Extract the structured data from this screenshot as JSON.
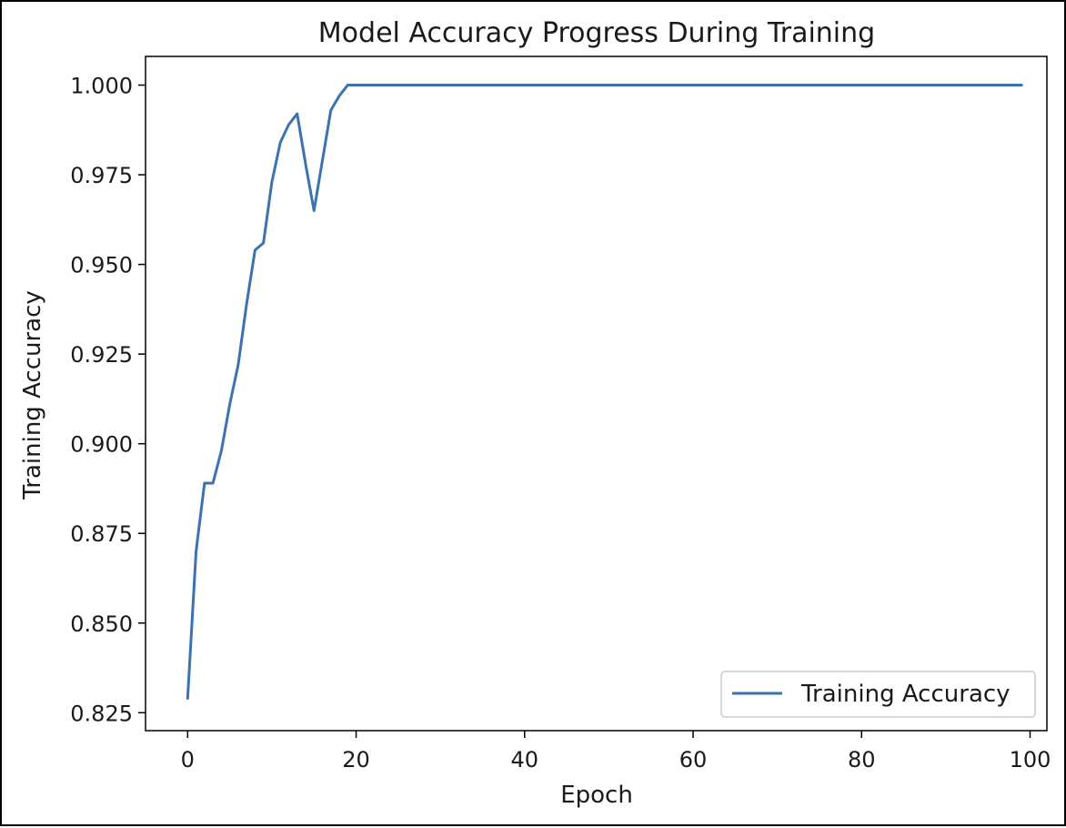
{
  "chart_data": {
    "type": "line",
    "title": "Model Accuracy Progress During Training",
    "xlabel": "Epoch",
    "ylabel": "Training Accuracy",
    "xlim": [
      -5,
      102
    ],
    "ylim": [
      0.82,
      1.008
    ],
    "xticks": [
      0,
      20,
      40,
      60,
      80,
      100
    ],
    "xtick_labels": [
      "0",
      "20",
      "40",
      "60",
      "80",
      "100"
    ],
    "yticks": [
      0.825,
      0.85,
      0.875,
      0.9,
      0.925,
      0.95,
      0.975,
      1.0
    ],
    "ytick_labels": [
      "0.825",
      "0.850",
      "0.875",
      "0.900",
      "0.925",
      "0.950",
      "0.975",
      "1.000"
    ],
    "grid": false,
    "legend_position": "lower-right",
    "series": [
      {
        "name": "Training Accuracy",
        "color": "#3b73b0",
        "x": [
          0,
          1,
          2,
          3,
          4,
          5,
          6,
          7,
          8,
          9,
          10,
          11,
          12,
          13,
          14,
          15,
          16,
          17,
          18,
          19,
          20,
          21,
          22,
          23,
          24,
          25,
          26,
          27,
          28,
          29,
          30,
          31,
          32,
          33,
          34,
          35,
          36,
          37,
          38,
          39,
          40,
          41,
          42,
          43,
          44,
          45,
          46,
          47,
          48,
          49,
          50,
          51,
          52,
          53,
          54,
          55,
          56,
          57,
          58,
          59,
          60,
          61,
          62,
          63,
          64,
          65,
          66,
          67,
          68,
          69,
          70,
          71,
          72,
          73,
          74,
          75,
          76,
          77,
          78,
          79,
          80,
          81,
          82,
          83,
          84,
          85,
          86,
          87,
          88,
          89,
          90,
          91,
          92,
          93,
          94,
          95,
          96,
          97,
          98,
          99
        ],
        "values": [
          0.829,
          0.87,
          0.889,
          0.889,
          0.898,
          0.911,
          0.922,
          0.939,
          0.954,
          0.956,
          0.973,
          0.984,
          0.989,
          0.992,
          0.978,
          0.965,
          0.979,
          0.993,
          0.997,
          1.0,
          1.0,
          1.0,
          1.0,
          1.0,
          1.0,
          1.0,
          1.0,
          1.0,
          1.0,
          1.0,
          1.0,
          1.0,
          1.0,
          1.0,
          1.0,
          1.0,
          1.0,
          1.0,
          1.0,
          1.0,
          1.0,
          1.0,
          1.0,
          1.0,
          1.0,
          1.0,
          1.0,
          1.0,
          1.0,
          1.0,
          1.0,
          1.0,
          1.0,
          1.0,
          1.0,
          1.0,
          1.0,
          1.0,
          1.0,
          1.0,
          1.0,
          1.0,
          1.0,
          1.0,
          1.0,
          1.0,
          1.0,
          1.0,
          1.0,
          1.0,
          1.0,
          1.0,
          1.0,
          1.0,
          1.0,
          1.0,
          1.0,
          1.0,
          1.0,
          1.0,
          1.0,
          1.0,
          1.0,
          1.0,
          1.0,
          1.0,
          1.0,
          1.0,
          1.0,
          1.0,
          1.0,
          1.0,
          1.0,
          1.0,
          1.0,
          1.0,
          1.0,
          1.0,
          1.0,
          1.0
        ]
      }
    ]
  }
}
